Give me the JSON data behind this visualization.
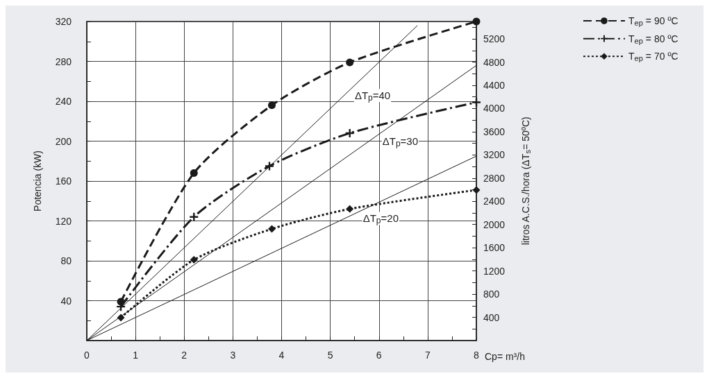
{
  "chart_data": {
    "type": "line",
    "xlabel": "Cp= m³/h",
    "ylabel": "Potencia (kW)",
    "y2label": "litros A.C.S./hora (ΔT$_{s}$= 50ºC)",
    "xlim": [
      0,
      8
    ],
    "xticks": [
      0,
      1,
      2,
      3,
      4,
      5,
      6,
      7,
      8
    ],
    "ylim": [
      0,
      320
    ],
    "yticks": [
      40,
      80,
      120,
      160,
      200,
      240,
      280,
      320
    ],
    "y2lim": [
      0,
      5500
    ],
    "y2ticks": [
      400,
      800,
      1200,
      1600,
      2000,
      2400,
      2800,
      3200,
      3600,
      4000,
      4400,
      4800,
      5200
    ],
    "grid": true,
    "legend": "top right",
    "series": [
      {
        "name": "T$_{ep}$ = 90 ºC",
        "color": "#1a1a1a",
        "marker": "circle",
        "line_style": "dashed",
        "x": [
          0.7,
          2.2,
          3.8,
          5.4,
          8
        ],
        "values": [
          39,
          168,
          236,
          279,
          320
        ]
      },
      {
        "name": "T$_{ep}$ = 80 ºC",
        "color": "#1a1a1a",
        "marker": "cross",
        "line_style": "dashdot",
        "x": [
          0.7,
          2.2,
          3.75,
          5.4,
          8
        ],
        "values": [
          34,
          124,
          175,
          208,
          239
        ]
      },
      {
        "name": "T$_{ep}$ = 70 ºC",
        "color": "#1a1a1a",
        "marker": "diamond",
        "line_style": "dotted",
        "x": [
          0.7,
          2.2,
          3.8,
          5.4,
          8
        ],
        "values": [
          23,
          81,
          112,
          132,
          151
        ]
      },
      {
        "name": "ΔT$_{p}$=40",
        "color": "#1a1a1a",
        "marker": "none",
        "line_style": "solid",
        "x": [
          0,
          6.79
        ],
        "values": [
          0,
          316
        ]
      },
      {
        "name": "ΔT$_{p}$=30",
        "color": "#1a1a1a",
        "marker": "none",
        "line_style": "solid",
        "x": [
          0,
          8
        ],
        "values": [
          0,
          276
        ]
      },
      {
        "name": "ΔT$_{p}$=20",
        "color": "#1a1a1a",
        "marker": "none",
        "line_style": "solid",
        "x": [
          0,
          8
        ],
        "values": [
          0,
          185
        ]
      }
    ]
  }
}
